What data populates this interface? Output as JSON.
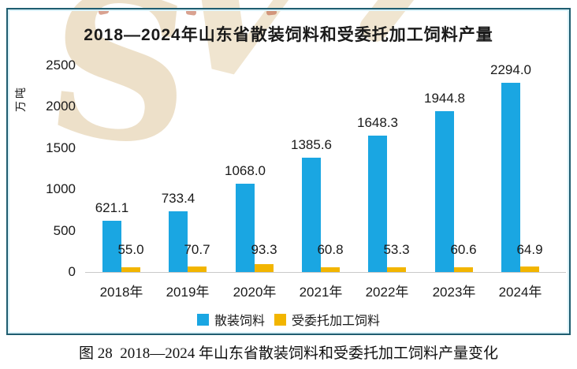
{
  "page": {
    "caption": "图 28  2018—2024 年山东省散装饲料和受委托加工饲料产量变化"
  },
  "colors": {
    "bulk_blue": "#1aa6e2",
    "commissioned_yellow": "#f2b500",
    "frame_border": "#1f5d70",
    "frame_inner_line": "#d9f1f8",
    "axis_line": "#c9c9c9",
    "text": "#1a1a1a",
    "watermark_beige": "#ebddc3",
    "watermark_red": "#b95534"
  },
  "chart_data": {
    "type": "bar",
    "title": "2018—2024年山东省散装饲料和受委托加工饲料产量",
    "xlabel": "",
    "ylabel": "万吨",
    "categories": [
      "2018年",
      "2019年",
      "2020年",
      "2021年",
      "2022年",
      "2023年",
      "2024年"
    ],
    "series": [
      {
        "name": "散装饲料",
        "color": "#1aa6e2",
        "values": [
          621.1,
          733.4,
          1068.0,
          1385.6,
          1648.3,
          1944.8,
          2294.0
        ],
        "labels": [
          "621.1",
          "733.4",
          "1068.0",
          "1385.6",
          "1648.3",
          "1944.8",
          "2294.0"
        ]
      },
      {
        "name": "受委托加工饲料",
        "color": "#f2b500",
        "values": [
          55.0,
          70.7,
          93.3,
          60.8,
          53.3,
          60.6,
          64.9
        ],
        "labels": [
          "55.0",
          "70.7",
          "93.3",
          "60.8",
          "53.3",
          "60.6",
          "64.9"
        ]
      }
    ],
    "ylim": [
      0,
      2500
    ],
    "yticks": [
      0,
      500,
      1000,
      1500,
      2000,
      2500
    ],
    "grid": false,
    "legend_position": "bottom",
    "value_labels": true
  }
}
